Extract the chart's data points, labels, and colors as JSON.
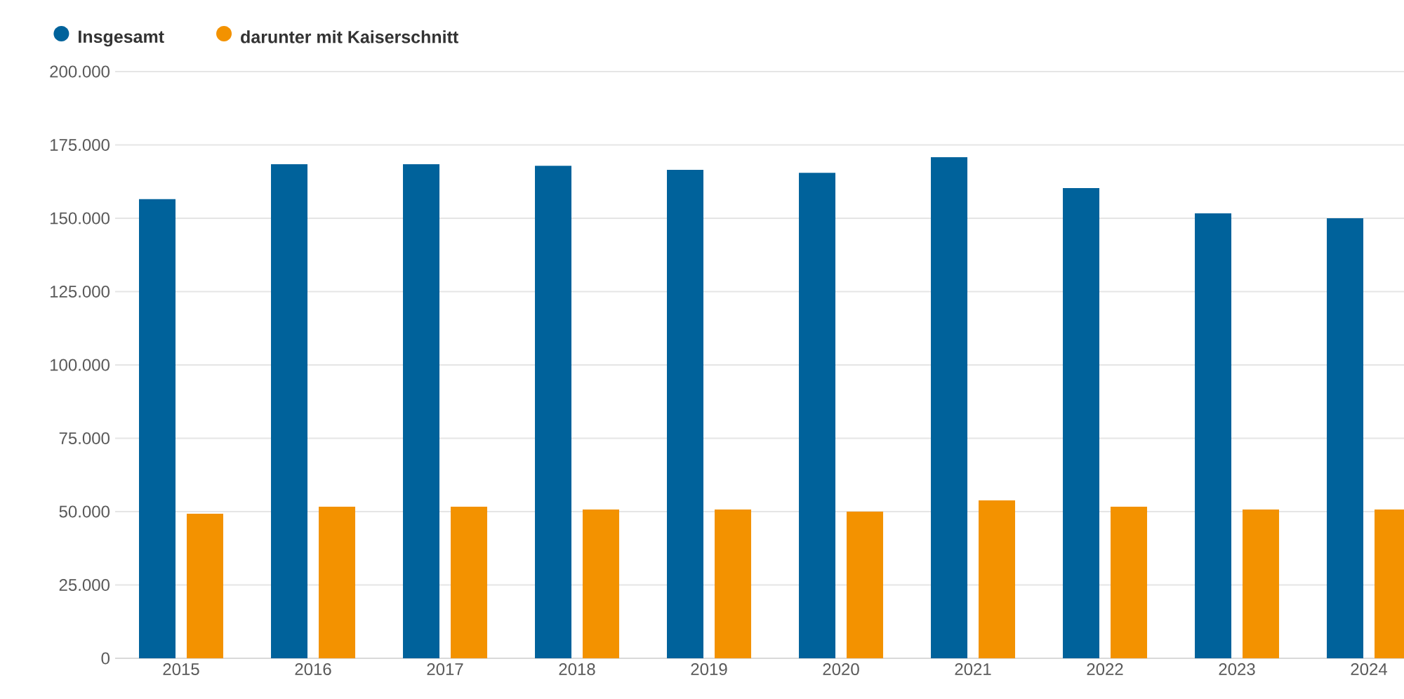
{
  "chart_data": {
    "type": "bar",
    "categories": [
      "2015",
      "2016",
      "2017",
      "2018",
      "2019",
      "2020",
      "2021",
      "2022",
      "2023",
      "2024"
    ],
    "series": [
      {
        "name": "Insgesamt",
        "color": "#00629b",
        "values": [
          156500,
          168400,
          168400,
          167900,
          166500,
          165500,
          170800,
          160300,
          151700,
          150000
        ]
      },
      {
        "name": "darunter mit Kaiserschnitt",
        "color": "#f39200",
        "values": [
          49300,
          51700,
          51700,
          50700,
          50700,
          50000,
          53800,
          51700,
          50700,
          50700
        ]
      }
    ],
    "ylim": [
      0,
      200000
    ],
    "yticks": [
      {
        "value": 0,
        "label": "0"
      },
      {
        "value": 25000,
        "label": "25.000"
      },
      {
        "value": 50000,
        "label": "50.000"
      },
      {
        "value": 75000,
        "label": "75.000"
      },
      {
        "value": 100000,
        "label": "100.000"
      },
      {
        "value": 125000,
        "label": "125.000"
      },
      {
        "value": 150000,
        "label": "150.000"
      },
      {
        "value": 175000,
        "label": "175.000"
      },
      {
        "value": 200000,
        "label": "200.000"
      }
    ],
    "grid": "y",
    "legend": "top left"
  }
}
